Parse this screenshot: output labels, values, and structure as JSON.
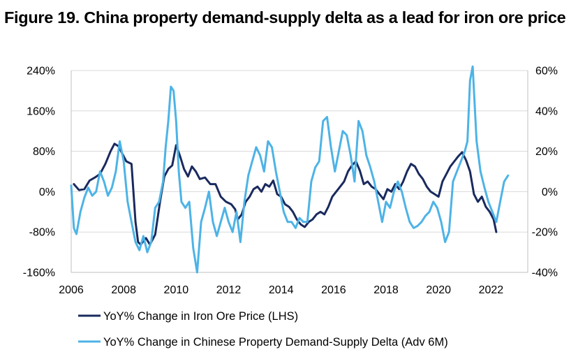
{
  "chart_data": {
    "type": "line",
    "title": "Figure 19. China property demand-supply delta as a lead for iron ore price",
    "x_ticks": [
      "2006",
      "2008",
      "2010",
      "2012",
      "2014",
      "2016",
      "2018",
      "2020",
      "2022"
    ],
    "xlim": [
      2006.0,
      2023.4
    ],
    "ylim_left": [
      -160,
      240
    ],
    "ylim_right": [
      -40,
      60
    ],
    "y_ticks_left": [
      "-160%",
      "-80%",
      "0%",
      "80%",
      "160%",
      "240%"
    ],
    "y_ticks_right": [
      "-40%",
      "-20%",
      "0%",
      "20%",
      "40%",
      "60%"
    ],
    "grid": "horizontal",
    "legend_position": "bottom",
    "colors": {
      "series_1": "#1a2a5e",
      "series_2": "#4db3e6",
      "gridline": "#d9d9d9",
      "axis": "#bfbfbf"
    },
    "series": [
      {
        "name": "YoY% Change in Iron Ore Price (LHS)",
        "axis": "left",
        "x": [
          2006.1,
          2006.3,
          2006.5,
          2006.7,
          2006.9,
          2007.1,
          2007.3,
          2007.5,
          2007.65,
          2007.8,
          2007.95,
          2008.1,
          2008.3,
          2008.45,
          2008.55,
          2008.65,
          2008.75,
          2008.85,
          2009.0,
          2009.2,
          2009.4,
          2009.55,
          2009.7,
          2009.85,
          2010.0,
          2010.15,
          2010.3,
          2010.45,
          2010.6,
          2010.75,
          2010.9,
          2011.1,
          2011.3,
          2011.5,
          2011.7,
          2011.9,
          2012.1,
          2012.25,
          2012.35,
          2012.5,
          2012.65,
          2012.8,
          2012.95,
          2013.1,
          2013.25,
          2013.4,
          2013.55,
          2013.7,
          2013.85,
          2014.0,
          2014.15,
          2014.3,
          2014.45,
          2014.6,
          2014.75,
          2014.9,
          2015.05,
          2015.2,
          2015.35,
          2015.5,
          2015.65,
          2015.8,
          2015.95,
          2016.1,
          2016.25,
          2016.4,
          2016.55,
          2016.7,
          2016.85,
          2017.0,
          2017.15,
          2017.3,
          2017.45,
          2017.6,
          2017.75,
          2017.9,
          2018.05,
          2018.2,
          2018.35,
          2018.5,
          2018.65,
          2018.8,
          2018.95,
          2019.1,
          2019.25,
          2019.4,
          2019.55,
          2019.7,
          2019.85,
          2020.0,
          2020.15,
          2020.3,
          2020.45,
          2020.6,
          2020.75,
          2020.9,
          2021.05,
          2021.2,
          2021.35,
          2021.5,
          2021.65,
          2021.8,
          2021.95,
          2022.1,
          2022.2
        ],
        "values": [
          15,
          3,
          5,
          22,
          28,
          35,
          55,
          80,
          95,
          90,
          75,
          60,
          55,
          -60,
          -100,
          -105,
          -98,
          -92,
          -105,
          -85,
          -15,
          30,
          45,
          52,
          92,
          70,
          45,
          30,
          50,
          40,
          25,
          28,
          15,
          15,
          -10,
          -20,
          -25,
          -35,
          -55,
          -45,
          -20,
          -10,
          5,
          10,
          0,
          15,
          10,
          22,
          -5,
          -10,
          -25,
          -30,
          -40,
          -55,
          -65,
          -70,
          -60,
          -55,
          -45,
          -40,
          -45,
          -30,
          -10,
          0,
          10,
          20,
          40,
          52,
          60,
          42,
          15,
          20,
          10,
          5,
          -5,
          -15,
          5,
          0,
          15,
          5,
          20,
          40,
          55,
          50,
          35,
          25,
          10,
          0,
          -5,
          -10,
          20,
          35,
          50,
          60,
          70,
          78,
          62,
          40,
          -5,
          -20,
          -10,
          -30,
          -40,
          -55,
          -80
        ]
      },
      {
        "name": "YoY% Change in Chinese Property Demand-Supply Delta (Adv 6M)",
        "axis": "right",
        "x": [
          2006.0,
          2006.1,
          2006.2,
          2006.35,
          2006.5,
          2006.65,
          2006.8,
          2006.95,
          2007.1,
          2007.25,
          2007.4,
          2007.55,
          2007.7,
          2007.85,
          2008.0,
          2008.15,
          2008.3,
          2008.45,
          2008.6,
          2008.75,
          2008.9,
          2009.05,
          2009.2,
          2009.35,
          2009.5,
          2009.6,
          2009.7,
          2009.8,
          2009.9,
          2010.0,
          2010.1,
          2010.2,
          2010.35,
          2010.5,
          2010.65,
          2010.8,
          2010.95,
          2011.1,
          2011.25,
          2011.4,
          2011.55,
          2011.7,
          2011.85,
          2012.0,
          2012.15,
          2012.3,
          2012.45,
          2012.6,
          2012.75,
          2012.9,
          2013.05,
          2013.2,
          2013.35,
          2013.5,
          2013.65,
          2013.8,
          2013.95,
          2014.1,
          2014.25,
          2014.4,
          2014.55,
          2014.7,
          2014.85,
          2015.0,
          2015.15,
          2015.3,
          2015.45,
          2015.6,
          2015.75,
          2015.9,
          2016.05,
          2016.2,
          2016.35,
          2016.5,
          2016.65,
          2016.8,
          2016.95,
          2017.1,
          2017.25,
          2017.4,
          2017.55,
          2017.7,
          2017.85,
          2018.0,
          2018.15,
          2018.3,
          2018.45,
          2018.6,
          2018.75,
          2018.9,
          2019.05,
          2019.2,
          2019.35,
          2019.5,
          2019.65,
          2019.8,
          2019.95,
          2020.1,
          2020.25,
          2020.4,
          2020.55,
          2020.7,
          2020.85,
          2021.0,
          2021.1,
          2021.2,
          2021.3,
          2021.45,
          2021.6,
          2021.75,
          2021.9,
          2022.05,
          2022.2,
          2022.35,
          2022.5,
          2022.65
        ],
        "values": [
          3,
          -18,
          -21,
          -10,
          -3,
          2,
          -2,
          0,
          10,
          5,
          -2,
          2,
          10,
          25,
          15,
          -5,
          -15,
          -25,
          -29,
          -22,
          -30,
          -25,
          -8,
          -5,
          5,
          22,
          35,
          52,
          50,
          35,
          10,
          -5,
          -8,
          -5,
          -28,
          -40,
          -15,
          -8,
          0,
          -15,
          -22,
          -15,
          -8,
          -15,
          -20,
          -10,
          -25,
          -5,
          8,
          15,
          22,
          18,
          10,
          25,
          22,
          10,
          0,
          -10,
          -15,
          -15,
          -18,
          -13,
          -15,
          -15,
          5,
          12,
          15,
          35,
          37,
          22,
          10,
          20,
          30,
          28,
          18,
          5,
          35,
          30,
          18,
          12,
          5,
          -5,
          -15,
          -5,
          -8,
          0,
          5,
          0,
          -8,
          -15,
          -18,
          -17,
          -15,
          -12,
          -10,
          -5,
          -8,
          -15,
          -25,
          -20,
          5,
          10,
          15,
          20,
          25,
          55,
          62,
          25,
          10,
          2,
          -5,
          -10,
          -15,
          -5,
          5,
          8
        ]
      }
    ]
  }
}
